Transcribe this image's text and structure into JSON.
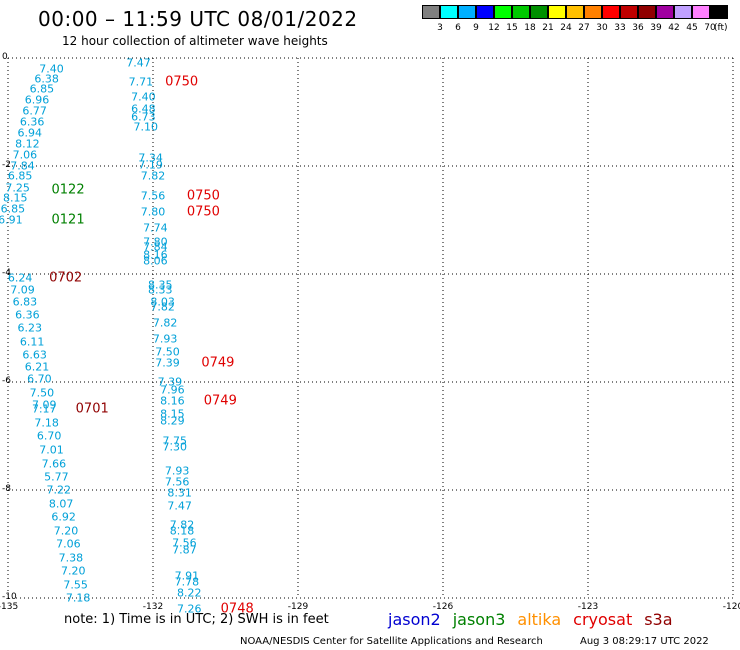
{
  "title": "00:00 – 11:59 UTC 08/01/2022",
  "subtitle": "12 hour collection of altimeter wave heights",
  "colorbar": {
    "colors": [
      "#808080",
      "#00ffff",
      "#00b0ff",
      "#0000ff",
      "#00ff00",
      "#00c800",
      "#009000",
      "#ffff00",
      "#ffc000",
      "#ff8000",
      "#ff0000",
      "#c00000",
      "#900000",
      "#a000a0",
      "#c0a0ff",
      "#ff80ff",
      "#000000"
    ],
    "ticks": [
      "3",
      "6",
      "9",
      "12",
      "15",
      "18",
      "21",
      "24",
      "27",
      "30",
      "33",
      "36",
      "39",
      "42",
      "45",
      "70"
    ],
    "unit": "(ft)"
  },
  "axes": {
    "x_ticks": [
      "-135",
      "-132",
      "-129",
      "-126",
      "-123",
      "-120"
    ],
    "y_ticks": [
      "0",
      "-2",
      "-4",
      "-6",
      "-8",
      "-10"
    ],
    "xlim": [
      -135,
      -120
    ],
    "ylim": [
      -10,
      0
    ],
    "grid": true
  },
  "chart_data": {
    "type": "scatter",
    "units": "ft",
    "tracks": [
      {
        "color": "#00a0d8",
        "points": [
          {
            "lon": -134.1,
            "lat": -0.2,
            "v": "7.40"
          },
          {
            "lon": -134.2,
            "lat": -0.38,
            "v": "6.38"
          },
          {
            "lon": -134.3,
            "lat": -0.58,
            "v": "6.85"
          },
          {
            "lon": -134.4,
            "lat": -0.78,
            "v": "6.96"
          },
          {
            "lon": -134.45,
            "lat": -0.98,
            "v": "6.77"
          },
          {
            "lon": -134.5,
            "lat": -1.18,
            "v": "6.36"
          },
          {
            "lon": -134.55,
            "lat": -1.38,
            "v": "6.94"
          },
          {
            "lon": -134.6,
            "lat": -1.6,
            "v": "8.12"
          },
          {
            "lon": -134.65,
            "lat": -1.8,
            "v": "7.06"
          },
          {
            "lon": -134.7,
            "lat": -2.0,
            "v": "7.84"
          },
          {
            "lon": -134.75,
            "lat": -2.18,
            "v": "6.85"
          },
          {
            "lon": -134.8,
            "lat": -2.4,
            "v": "7.25"
          },
          {
            "lon": -134.85,
            "lat": -2.6,
            "v": "8.15"
          },
          {
            "lon": -134.9,
            "lat": -2.8,
            "v": "6.85"
          },
          {
            "lon": -134.95,
            "lat": -3.0,
            "v": "6.91"
          }
        ]
      },
      {
        "color": "#00a0d8",
        "points": [
          {
            "lon": -132.3,
            "lat": -0.1,
            "v": "7.47"
          },
          {
            "lon": -132.25,
            "lat": -0.45,
            "v": "7.71"
          },
          {
            "lon": -132.2,
            "lat": -0.72,
            "v": "7.40"
          },
          {
            "lon": -132.2,
            "lat": -0.95,
            "v": "6.48"
          },
          {
            "lon": -132.2,
            "lat": -1.1,
            "v": "6.73"
          },
          {
            "lon": -132.15,
            "lat": -1.28,
            "v": "7.10"
          },
          {
            "lon": -132.05,
            "lat": -1.85,
            "v": "7.34"
          },
          {
            "lon": -132.05,
            "lat": -1.98,
            "v": "7.19"
          },
          {
            "lon": -132.0,
            "lat": -2.18,
            "v": "7.82"
          },
          {
            "lon": -132.0,
            "lat": -2.55,
            "v": "7.56"
          },
          {
            "lon": -132.0,
            "lat": -2.85,
            "v": "7.80"
          },
          {
            "lon": -131.95,
            "lat": -3.15,
            "v": "7.74"
          },
          {
            "lon": -131.95,
            "lat": -3.4,
            "v": "7.80"
          },
          {
            "lon": -131.95,
            "lat": -3.5,
            "v": "7.84"
          },
          {
            "lon": -131.95,
            "lat": -3.65,
            "v": "8.16"
          },
          {
            "lon": -131.95,
            "lat": -3.75,
            "v": "8.06"
          }
        ]
      },
      {
        "color": "#00a0d8",
        "points": [
          {
            "lon": -134.75,
            "lat": -4.08,
            "v": "6.24"
          },
          {
            "lon": -134.7,
            "lat": -4.3,
            "v": "7.09"
          },
          {
            "lon": -134.65,
            "lat": -4.52,
            "v": "6.83"
          },
          {
            "lon": -134.6,
            "lat": -4.75,
            "v": "6.36"
          },
          {
            "lon": -134.55,
            "lat": -5.0,
            "v": "6.23"
          },
          {
            "lon": -134.5,
            "lat": -5.25,
            "v": "6.11"
          },
          {
            "lon": -134.45,
            "lat": -5.5,
            "v": "6.63"
          },
          {
            "lon": -134.4,
            "lat": -5.72,
            "v": "6.21"
          },
          {
            "lon": -134.35,
            "lat": -5.95,
            "v": "6.70"
          },
          {
            "lon": -134.3,
            "lat": -6.2,
            "v": "7.50"
          },
          {
            "lon": -134.25,
            "lat": -6.42,
            "v": "7.09"
          },
          {
            "lon": -134.25,
            "lat": -6.5,
            "v": "7.17"
          },
          {
            "lon": -134.2,
            "lat": -6.75,
            "v": "7.18"
          },
          {
            "lon": -134.15,
            "lat": -7.0,
            "v": "6.70"
          },
          {
            "lon": -134.1,
            "lat": -7.25,
            "v": "7.01"
          },
          {
            "lon": -134.05,
            "lat": -7.52,
            "v": "7.66"
          },
          {
            "lon": -134.0,
            "lat": -7.75,
            "v": "5.77"
          },
          {
            "lon": -133.95,
            "lat": -8.0,
            "v": "7.22"
          },
          {
            "lon": -133.9,
            "lat": -8.25,
            "v": "8.07"
          },
          {
            "lon": -133.85,
            "lat": -8.5,
            "v": "6.92"
          },
          {
            "lon": -133.8,
            "lat": -8.75,
            "v": "7.20"
          },
          {
            "lon": -133.75,
            "lat": -9.0,
            "v": "7.06"
          },
          {
            "lon": -133.7,
            "lat": -9.25,
            "v": "7.38"
          },
          {
            "lon": -133.65,
            "lat": -9.5,
            "v": "7.20"
          },
          {
            "lon": -133.6,
            "lat": -9.75,
            "v": "7.55"
          },
          {
            "lon": -133.55,
            "lat": -10.0,
            "v": "7.18"
          }
        ]
      },
      {
        "color": "#00a0d8",
        "points": [
          {
            "lon": -131.85,
            "lat": -4.2,
            "v": "8.35"
          },
          {
            "lon": -131.85,
            "lat": -4.3,
            "v": "8.33"
          },
          {
            "lon": -131.8,
            "lat": -4.52,
            "v": "8.03"
          },
          {
            "lon": -131.8,
            "lat": -4.62,
            "v": "7.82"
          },
          {
            "lon": -131.75,
            "lat": -4.9,
            "v": "7.82"
          },
          {
            "lon": -131.75,
            "lat": -5.2,
            "v": "7.93"
          },
          {
            "lon": -131.7,
            "lat": -5.45,
            "v": "7.50"
          },
          {
            "lon": -131.7,
            "lat": -5.65,
            "v": "7.39"
          },
          {
            "lon": -131.65,
            "lat": -6.0,
            "v": "7.39"
          },
          {
            "lon": -131.6,
            "lat": -6.15,
            "v": "7.96"
          },
          {
            "lon": -131.6,
            "lat": -6.35,
            "v": "8.16"
          },
          {
            "lon": -131.6,
            "lat": -6.6,
            "v": "8.15"
          },
          {
            "lon": -131.6,
            "lat": -6.72,
            "v": "8.29"
          },
          {
            "lon": -131.55,
            "lat": -7.1,
            "v": "7.75"
          },
          {
            "lon": -131.55,
            "lat": -7.2,
            "v": "7.30"
          },
          {
            "lon": -131.5,
            "lat": -7.65,
            "v": "7.93"
          },
          {
            "lon": -131.5,
            "lat": -7.85,
            "v": "7.56"
          },
          {
            "lon": -131.45,
            "lat": -8.05,
            "v": "8.31"
          },
          {
            "lon": -131.45,
            "lat": -8.3,
            "v": "7.47"
          },
          {
            "lon": -131.4,
            "lat": -8.65,
            "v": "7.82"
          },
          {
            "lon": -131.4,
            "lat": -8.75,
            "v": "8.18"
          },
          {
            "lon": -131.35,
            "lat": -8.98,
            "v": "7.56"
          },
          {
            "lon": -131.35,
            "lat": -9.12,
            "v": "7.87"
          },
          {
            "lon": -131.3,
            "lat": -9.6,
            "v": "7.91"
          },
          {
            "lon": -131.3,
            "lat": -9.7,
            "v": "7.78"
          },
          {
            "lon": -131.25,
            "lat": -9.9,
            "v": "8.22"
          },
          {
            "lon": -131.25,
            "lat": -10.2,
            "v": "7.26"
          }
        ]
      }
    ],
    "passes": [
      {
        "label": "0750",
        "color": "#e00000",
        "lon": -131.75,
        "lat": -0.45
      },
      {
        "label": "0750",
        "color": "#e00000",
        "lon": -131.3,
        "lat": -2.55
      },
      {
        "label": "0750",
        "color": "#e00000",
        "lon": -131.3,
        "lat": -2.85
      },
      {
        "label": "0122",
        "color": "#008000",
        "lon": -134.1,
        "lat": -2.45
      },
      {
        "label": "0121",
        "color": "#008000",
        "lon": -134.1,
        "lat": -3.0
      },
      {
        "label": "0702",
        "color": "#900000",
        "lon": -134.15,
        "lat": -4.08
      },
      {
        "label": "0749",
        "color": "#e00000",
        "lon": -131.0,
        "lat": -5.65
      },
      {
        "label": "0701",
        "color": "#900000",
        "lon": -133.6,
        "lat": -6.5
      },
      {
        "label": "0749",
        "color": "#e00000",
        "lon": -130.95,
        "lat": -6.35
      },
      {
        "label": "0748",
        "color": "#e00000",
        "lon": -130.6,
        "lat": -10.2
      }
    ]
  },
  "footer": {
    "note": "note:  1) Time is in UTC;  2) SWH is in feet",
    "satellites": [
      {
        "name": "jason2",
        "color": "#0000d0"
      },
      {
        "name": "jason3",
        "color": "#008000"
      },
      {
        "name": "altika",
        "color": "#ff9000"
      },
      {
        "name": "cryosat",
        "color": "#e00000"
      },
      {
        "name": "s3a",
        "color": "#900000"
      }
    ],
    "credit": "NOAA/NESDIS Center for Satellite Applications and Research",
    "timestamp": "Aug  3 08:29:17 UTC 2022"
  }
}
